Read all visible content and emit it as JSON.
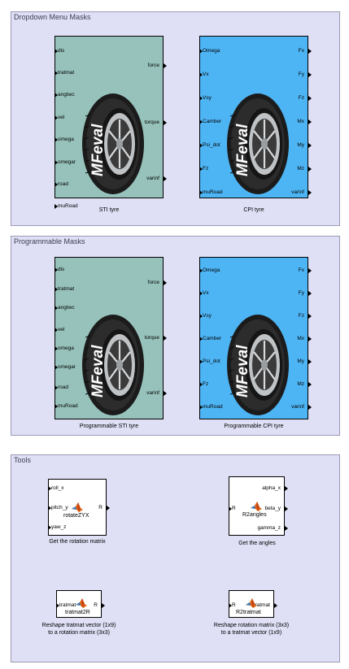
{
  "areas": {
    "dropdown_title": "Dropdown Menu Masks",
    "programmable_title": "Programmable Masks",
    "tools_title": "Tools"
  },
  "tyre_logo": "MFeval",
  "sti_ports": {
    "inputs": [
      "dis",
      "tratmat",
      "angtwc",
      "vel",
      "omega",
      "omegar",
      "road",
      "muRoad"
    ],
    "outputs": [
      "force",
      "torque",
      "varinf"
    ]
  },
  "cpi_ports": {
    "inputs": [
      "Omega",
      "Vx",
      "Vsy",
      "Camber",
      "Psi_dot",
      "Fz",
      "muRoad"
    ],
    "outputs": [
      "Fx",
      "Fy",
      "Fz",
      "Mx",
      "My",
      "Mz",
      "varinf"
    ]
  },
  "blocks": {
    "sti_dropdown_caption": "STI tyre",
    "cpi_dropdown_caption": "CPI tyre",
    "sti_prog_caption": "Programmable STI tyre",
    "cpi_prog_caption": "Programmable CPI tyre"
  },
  "tools": {
    "rotate": {
      "inputs": [
        "roll_x",
        "pitch_y",
        "yaw_z"
      ],
      "output": "R",
      "name": "rotateZYX",
      "caption": "Get the rotation matrix"
    },
    "angles": {
      "input": "R",
      "outputs": [
        "alpha_x",
        "beta_y",
        "gamma_z"
      ],
      "name": "R2angles",
      "caption": "Get the angles"
    },
    "t2r": {
      "input": "tratmat",
      "output": "R",
      "name": "tratmat2R",
      "caption_l1": "Reshape tratmat vector (1x9)",
      "caption_l2": "to a rotation matrix (3x3)"
    },
    "r2t": {
      "input": "R",
      "output": "tratmat",
      "name": "R2tratmat",
      "caption_l1": "Reshape rotation matrix (3x3)",
      "caption_l2": "to a tratmat vector (1x9)"
    }
  },
  "colors": {
    "area_bg": "#dfdff5",
    "sti_block": "#97c2bb",
    "cpi_block": "#4eb5f5",
    "matlab_logo": "#e26a1b"
  }
}
